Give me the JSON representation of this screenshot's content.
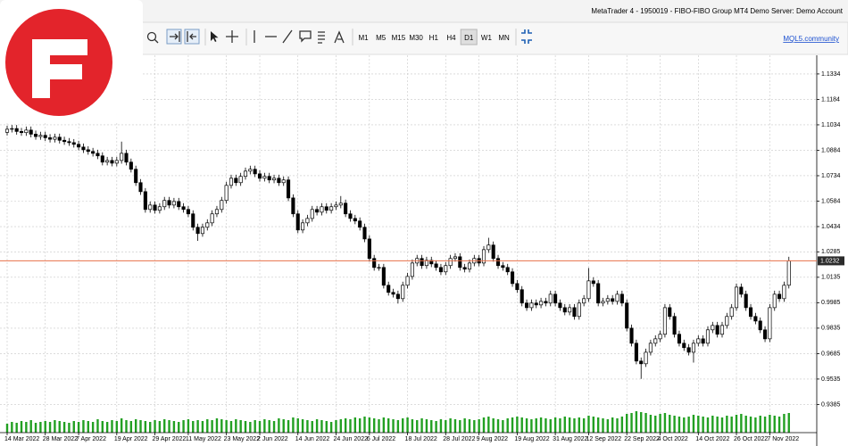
{
  "window": {
    "title": "MetaTrader 4 - 1950019 - FIBO-FIBO Group MT4 Demo Server: Demo Account",
    "link": "MQL5.community"
  },
  "toolbar": {
    "timeframes": [
      "M1",
      "M5",
      "M15",
      "M30",
      "H1",
      "H4",
      "D1",
      "W1",
      "MN"
    ],
    "active": "D1"
  },
  "chart_data": {
    "type": "candlestick",
    "categories": [
      "14 Mar 2022",
      null,
      null,
      null,
      null,
      null,
      null,
      null,
      "28 Mar 2022",
      null,
      null,
      null,
      null,
      null,
      null,
      "7 Apr 2022",
      null,
      null,
      null,
      null,
      null,
      null,
      null,
      "19 Apr 2022",
      null,
      null,
      null,
      null,
      null,
      null,
      null,
      "29 Apr 2022",
      null,
      null,
      null,
      null,
      null,
      null,
      "11 May 2022",
      null,
      null,
      null,
      null,
      null,
      null,
      null,
      "23 May 2022",
      null,
      null,
      null,
      null,
      null,
      null,
      "2 Jun 2022",
      null,
      null,
      null,
      null,
      null,
      null,
      null,
      "14 Jun 2022",
      null,
      null,
      null,
      null,
      null,
      null,
      null,
      "24 Jun 2022",
      null,
      null,
      null,
      null,
      null,
      null,
      "6 Jul 2022",
      null,
      null,
      null,
      null,
      null,
      null,
      null,
      "18 Jul 2022",
      null,
      null,
      null,
      null,
      null,
      null,
      null,
      "28 Jul 2022",
      null,
      null,
      null,
      null,
      null,
      null,
      "9 Aug 2022",
      null,
      null,
      null,
      null,
      null,
      null,
      null,
      "19 Aug 2022",
      null,
      null,
      null,
      null,
      null,
      null,
      null,
      "31 Aug 2022",
      null,
      null,
      null,
      null,
      null,
      null,
      "12 Sep 2022",
      null,
      null,
      null,
      null,
      null,
      null,
      null,
      "22 Sep 2022",
      null,
      null,
      null,
      null,
      null,
      null,
      "4 Oct 2022",
      null,
      null,
      null,
      null,
      null,
      null,
      null,
      "14 Oct 2022",
      null,
      null,
      null,
      null,
      null,
      null,
      null,
      "26 Oct 2022",
      null,
      null,
      null,
      null,
      null,
      null,
      "7 Nov 2022",
      null,
      null,
      null,
      null
    ],
    "open": [
      1.099,
      1.1008,
      1.1012,
      1.0995,
      1.0988,
      1.1003,
      1.0979,
      1.0965,
      1.0972,
      1.0958,
      1.0949,
      1.0961,
      1.0943,
      1.0935,
      1.0929,
      1.0919,
      1.0903,
      1.0887,
      1.0877,
      1.0866,
      1.0851,
      1.0814,
      1.0824,
      1.0808,
      1.0824,
      1.0866,
      1.0814,
      1.0772,
      1.0693,
      1.064,
      1.0535,
      1.0561,
      1.053,
      1.0551,
      1.0588,
      1.0561,
      1.0582,
      1.0551,
      1.0535,
      1.0509,
      1.043,
      1.0393,
      1.043,
      1.0456,
      1.0509,
      1.0535,
      1.0588,
      1.0677,
      1.0719,
      1.0693,
      1.073,
      1.0761,
      1.0772,
      1.0745,
      1.0719,
      1.073,
      1.0709,
      1.0719,
      1.0693,
      1.0709,
      1.0603,
      1.0509,
      1.0414,
      1.0456,
      1.0482,
      1.0535,
      1.0519,
      1.0551,
      1.053,
      1.0551,
      1.0561,
      1.0572,
      1.0509,
      1.0482,
      1.0467,
      1.043,
      1.0361,
      1.0246,
      1.0193,
      1.0193,
      1.0088,
      1.0046,
      1.0035,
      1.0009,
      1.0088,
      1.014,
      1.0219,
      1.0246,
      1.0204,
      1.0235,
      1.0214,
      1.0193,
      1.0167,
      1.0204,
      1.0246,
      1.0256,
      1.0193,
      1.0183,
      1.0219,
      1.0246,
      1.0219,
      1.0298,
      1.0325,
      1.0246,
      1.0204,
      1.0193,
      1.0167,
      1.0098,
      1.0062,
      0.9983,
      0.9956,
      0.9983,
      0.9972,
      0.9993,
      0.9983,
      1.0035,
      0.9983,
      0.9956,
      0.993,
      0.9956,
      0.9904,
      0.9983,
      1.0009,
      1.0114,
      1.0098,
      0.9983,
      0.9993,
      1.0009,
      0.9993,
      1.0035,
      0.9983,
      0.9835,
      0.9746,
      0.9641,
      0.9625,
      0.9693,
      0.9746,
      0.9772,
      0.9799,
      0.9956,
      0.9904,
      0.9799,
      0.9746,
      0.972,
      0.9693,
      0.9746,
      0.9772,
      0.9746,
      0.9825,
      0.9851,
      0.9799,
      0.9851,
      0.9904,
      0.9956,
      1.0077,
      1.0035,
      0.9956,
      0.9904,
      0.9877,
      0.9825,
      0.9772,
      0.9956,
      1.0035,
      1.0009,
      1.0088
    ],
    "high": [
      1.1029,
      1.1033,
      1.1033,
      1.1016,
      1.1024,
      1.1024,
      1.1,
      1.0993,
      1.0993,
      1.0979,
      1.0982,
      1.0982,
      1.0964,
      1.0956,
      1.095,
      1.094,
      1.0924,
      1.0908,
      1.0898,
      1.0887,
      1.0872,
      1.0845,
      1.0845,
      1.0845,
      1.0935,
      1.0887,
      1.0835,
      1.0793,
      1.0714,
      1.0661,
      1.0582,
      1.0582,
      1.0572,
      1.0609,
      1.0609,
      1.0603,
      1.0603,
      1.0572,
      1.0556,
      1.053,
      1.0451,
      1.0451,
      1.0477,
      1.053,
      1.0556,
      1.0609,
      1.0698,
      1.074,
      1.074,
      1.0751,
      1.0782,
      1.0793,
      1.0793,
      1.0766,
      1.0751,
      1.0751,
      1.074,
      1.074,
      1.073,
      1.073,
      1.0624,
      1.053,
      1.0477,
      1.0503,
      1.0556,
      1.0556,
      1.0572,
      1.0572,
      1.0572,
      1.0582,
      1.0614,
      1.0593,
      1.053,
      1.0503,
      1.0488,
      1.0451,
      1.0382,
      1.0267,
      1.0214,
      1.0214,
      1.0109,
      1.0067,
      1.0056,
      1.0109,
      1.0161,
      1.024,
      1.0267,
      1.0267,
      1.0256,
      1.0256,
      1.0235,
      1.0214,
      1.0225,
      1.0267,
      1.0277,
      1.0277,
      1.0214,
      1.024,
      1.0267,
      1.0267,
      1.0319,
      1.0368,
      1.0346,
      1.0267,
      1.0225,
      1.0214,
      1.0188,
      1.0119,
      1.0083,
      1.0004,
      1.0004,
      1.0004,
      1.0014,
      1.0014,
      1.0056,
      1.0056,
      1.0004,
      0.9977,
      0.9977,
      0.9977,
      1.0004,
      1.003,
      1.019,
      1.0135,
      1.0119,
      1.0014,
      1.003,
      1.003,
      1.0056,
      1.0056,
      1.0004,
      0.9856,
      0.9767,
      0.9662,
      0.9714,
      0.9767,
      0.9793,
      0.982,
      0.9977,
      0.9977,
      0.9925,
      0.982,
      0.9767,
      0.9741,
      0.9767,
      0.9793,
      0.9793,
      0.9846,
      0.9872,
      0.9872,
      0.9872,
      0.9925,
      0.9977,
      1.0098,
      1.0098,
      1.0056,
      0.9977,
      0.9925,
      0.9898,
      0.9846,
      0.9977,
      1.0056,
      1.0056,
      1.0109,
      1.0256
    ],
    "low": [
      1.0971,
      1.0989,
      1.0976,
      1.0969,
      1.0969,
      1.096,
      1.0946,
      1.0946,
      1.0939,
      1.093,
      1.093,
      1.0924,
      1.0916,
      1.091,
      1.09,
      1.0884,
      1.0868,
      1.0858,
      1.0847,
      1.0832,
      1.0795,
      1.0795,
      1.0789,
      1.0789,
      1.0805,
      1.0795,
      1.0753,
      1.0674,
      1.0621,
      1.0516,
      1.0516,
      1.0511,
      1.0511,
      1.0532,
      1.0542,
      1.0542,
      1.0532,
      1.0516,
      1.049,
      1.0411,
      1.035,
      1.0374,
      1.0411,
      1.0437,
      1.049,
      1.0516,
      1.0569,
      1.0658,
      1.0674,
      1.0674,
      1.0711,
      1.0742,
      1.0726,
      1.07,
      1.07,
      1.069,
      1.069,
      1.0674,
      1.0674,
      1.0584,
      1.049,
      1.0395,
      1.0395,
      1.0437,
      1.0463,
      1.05,
      1.05,
      1.0511,
      1.0511,
      1.0532,
      1.0542,
      1.049,
      1.0463,
      1.0448,
      1.0411,
      1.0342,
      1.0227,
      1.0174,
      1.0174,
      1.0069,
      1.0027,
      1.0016,
      0.998,
      0.999,
      1.0069,
      1.0121,
      1.02,
      1.0185,
      1.0185,
      1.0195,
      1.0174,
      1.0148,
      1.0148,
      1.0185,
      1.0227,
      1.0174,
      1.0164,
      1.0164,
      1.02,
      1.02,
      1.02,
      1.0279,
      1.0227,
      1.0185,
      1.0174,
      1.0148,
      1.0079,
      1.0043,
      0.9964,
      0.9937,
      0.9937,
      0.9953,
      0.9953,
      0.9964,
      0.9964,
      0.9964,
      0.9937,
      0.9911,
      0.9911,
      0.9885,
      0.9885,
      0.9964,
      0.999,
      1.0079,
      0.9964,
      0.9964,
      0.9974,
      0.9974,
      0.9974,
      0.9964,
      0.9816,
      0.9727,
      0.9622,
      0.9536,
      0.9606,
      0.9674,
      0.9727,
      0.9753,
      0.978,
      0.9885,
      0.978,
      0.9727,
      0.9701,
      0.9674,
      0.9632,
      0.9727,
      0.9727,
      0.9727,
      0.9806,
      0.978,
      0.978,
      0.9832,
      0.9885,
      0.9937,
      1.0016,
      0.9937,
      0.9885,
      0.9858,
      0.9806,
      0.9753,
      0.9753,
      0.9937,
      0.999,
      0.999,
      1.0069
    ],
    "close": [
      1.1008,
      1.1012,
      1.0995,
      1.0988,
      1.1003,
      1.0979,
      1.0965,
      1.0972,
      1.0958,
      1.0949,
      1.0961,
      1.0943,
      1.0935,
      1.0929,
      1.0919,
      1.0903,
      1.0887,
      1.0877,
      1.0866,
      1.0851,
      1.0814,
      1.0824,
      1.0808,
      1.0824,
      1.0866,
      1.0814,
      1.0772,
      1.0693,
      1.064,
      1.0535,
      1.0561,
      1.053,
      1.0551,
      1.0588,
      1.0561,
      1.0582,
      1.0551,
      1.0535,
      1.0509,
      1.043,
      1.0393,
      1.043,
      1.0456,
      1.0509,
      1.0535,
      1.0588,
      1.0677,
      1.0719,
      1.0693,
      1.073,
      1.0761,
      1.0772,
      1.0745,
      1.0719,
      1.073,
      1.0709,
      1.0719,
      1.0693,
      1.0709,
      1.0603,
      1.0509,
      1.0414,
      1.0456,
      1.0482,
      1.0535,
      1.0519,
      1.0551,
      1.053,
      1.0551,
      1.0561,
      1.0572,
      1.0509,
      1.0482,
      1.0467,
      1.043,
      1.0361,
      1.0246,
      1.0193,
      1.0193,
      1.0088,
      1.0046,
      1.0035,
      1.0009,
      1.0088,
      1.014,
      1.0219,
      1.0246,
      1.0204,
      1.0235,
      1.0214,
      1.0193,
      1.0167,
      1.0204,
      1.0246,
      1.0256,
      1.0193,
      1.0183,
      1.0219,
      1.0246,
      1.0219,
      1.0298,
      1.0325,
      1.0246,
      1.0204,
      1.0193,
      1.0167,
      1.0098,
      1.0062,
      0.9983,
      0.9956,
      0.9983,
      0.9972,
      0.9993,
      0.9983,
      1.0035,
      0.9983,
      0.9956,
      0.993,
      0.9956,
      0.9904,
      0.9983,
      1.0009,
      1.0114,
      1.0098,
      0.9983,
      0.9993,
      1.0009,
      0.9993,
      1.0035,
      0.9983,
      0.9835,
      0.9746,
      0.9641,
      0.9625,
      0.9693,
      0.9746,
      0.9772,
      0.9799,
      0.9956,
      0.9904,
      0.9799,
      0.9746,
      0.972,
      0.9693,
      0.9746,
      0.9772,
      0.9746,
      0.9825,
      0.9851,
      0.9799,
      0.9851,
      0.9904,
      0.9956,
      1.0077,
      1.0035,
      0.9956,
      0.9904,
      0.9877,
      0.9825,
      0.9772,
      0.9956,
      1.0035,
      1.0009,
      1.0088,
      1.0232
    ],
    "volume": [
      10,
      12,
      11,
      13,
      12,
      14,
      11,
      12,
      13,
      12,
      14,
      13,
      12,
      11,
      13,
      12,
      14,
      13,
      12,
      15,
      13,
      12,
      14,
      13,
      16,
      14,
      13,
      15,
      14,
      13,
      12,
      14,
      13,
      15,
      14,
      13,
      12,
      14,
      15,
      13,
      14,
      13,
      15,
      14,
      16,
      15,
      14,
      13,
      15,
      14,
      13,
      12,
      14,
      13,
      15,
      14,
      13,
      16,
      15,
      14,
      17,
      16,
      15,
      14,
      13,
      15,
      14,
      13,
      12,
      14,
      15,
      16,
      15,
      17,
      16,
      18,
      17,
      16,
      15,
      17,
      16,
      15,
      14,
      16,
      17,
      15,
      14,
      16,
      15,
      14,
      13,
      15,
      14,
      16,
      15,
      14,
      16,
      15,
      14,
      15,
      17,
      18,
      16,
      15,
      14,
      16,
      17,
      18,
      17,
      16,
      15,
      16,
      17,
      16,
      15,
      17,
      16,
      18,
      17,
      16,
      17,
      16,
      19,
      18,
      17,
      16,
      15,
      17,
      16,
      18,
      21,
      22,
      24,
      23,
      22,
      20,
      19,
      21,
      22,
      20,
      19,
      18,
      17,
      18,
      20,
      19,
      18,
      17,
      19,
      18,
      17,
      19,
      18,
      20,
      21,
      19,
      18,
      17,
      19,
      18,
      20,
      19,
      18,
      21,
      22
    ],
    "bull_color": "#ffffff",
    "bear_color": "#000000",
    "volume_color": "#22a022",
    "current_price": 1.0232,
    "current_price_color": "#e8704a",
    "ylim": [
      0.9219,
      1.1444
    ],
    "yticks": [
      1.1334,
      1.1184,
      1.1034,
      1.0884,
      1.0734,
      1.0584,
      1.0434,
      1.0285,
      1.0135,
      0.9985,
      0.9835,
      0.9685,
      0.9535,
      0.9385
    ],
    "grid": true
  }
}
